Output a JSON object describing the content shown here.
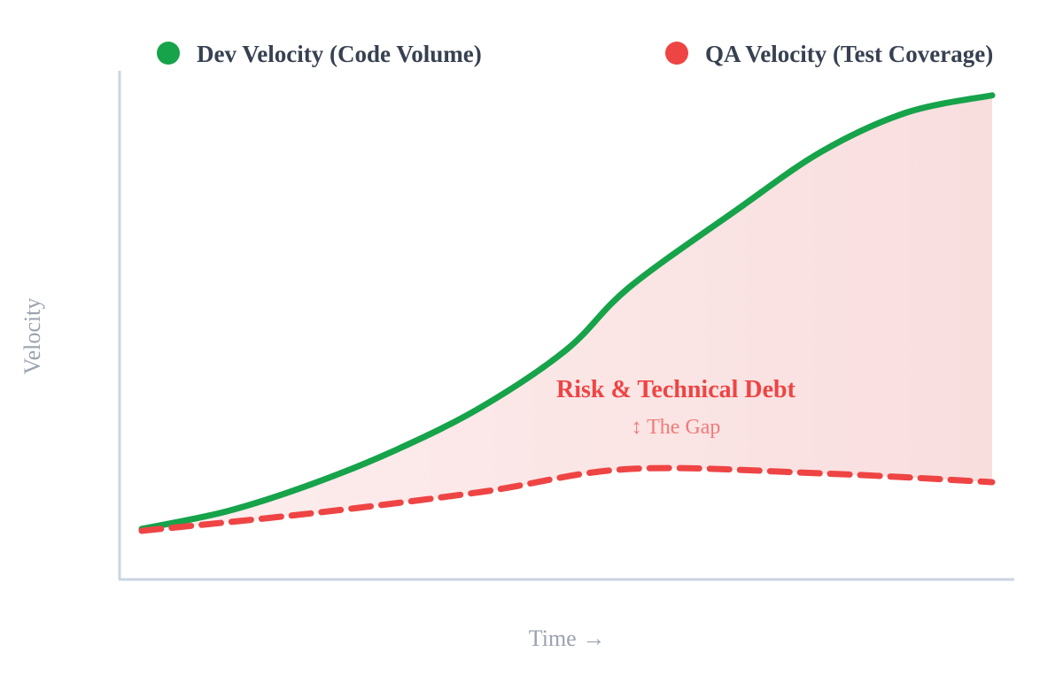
{
  "chart_data": {
    "type": "line",
    "title": "",
    "xlabel": "Time →",
    "ylabel": "Velocity",
    "xlim": [
      0,
      100
    ],
    "ylim": [
      0,
      100
    ],
    "grid": false,
    "legend_placement": "top",
    "series": [
      {
        "name": "Dev Velocity (Code Volume)",
        "color": "#16a34a",
        "style": "solid",
        "x": [
          0,
          10,
          20,
          30,
          40,
          50,
          57.3,
          70,
          80,
          90,
          100
        ],
        "y": [
          10.4,
          14,
          19.6,
          26.7,
          35.5,
          47.3,
          60,
          76,
          88,
          96,
          99.5
        ]
      },
      {
        "name": "QA Velocity (Test Coverage)",
        "color": "#ef4444",
        "style": "dashed",
        "x": [
          0,
          20,
          40,
          57.3,
          80,
          100
        ],
        "y": [
          10,
          13.6,
          18,
          22.7,
          21.8,
          20
        ]
      }
    ],
    "fill_between": {
      "color": "#fbe2e2"
    },
    "annotations": [
      {
        "text": "Risk & Technical Debt"
      },
      {
        "text": "↕ The Gap"
      }
    ]
  }
}
